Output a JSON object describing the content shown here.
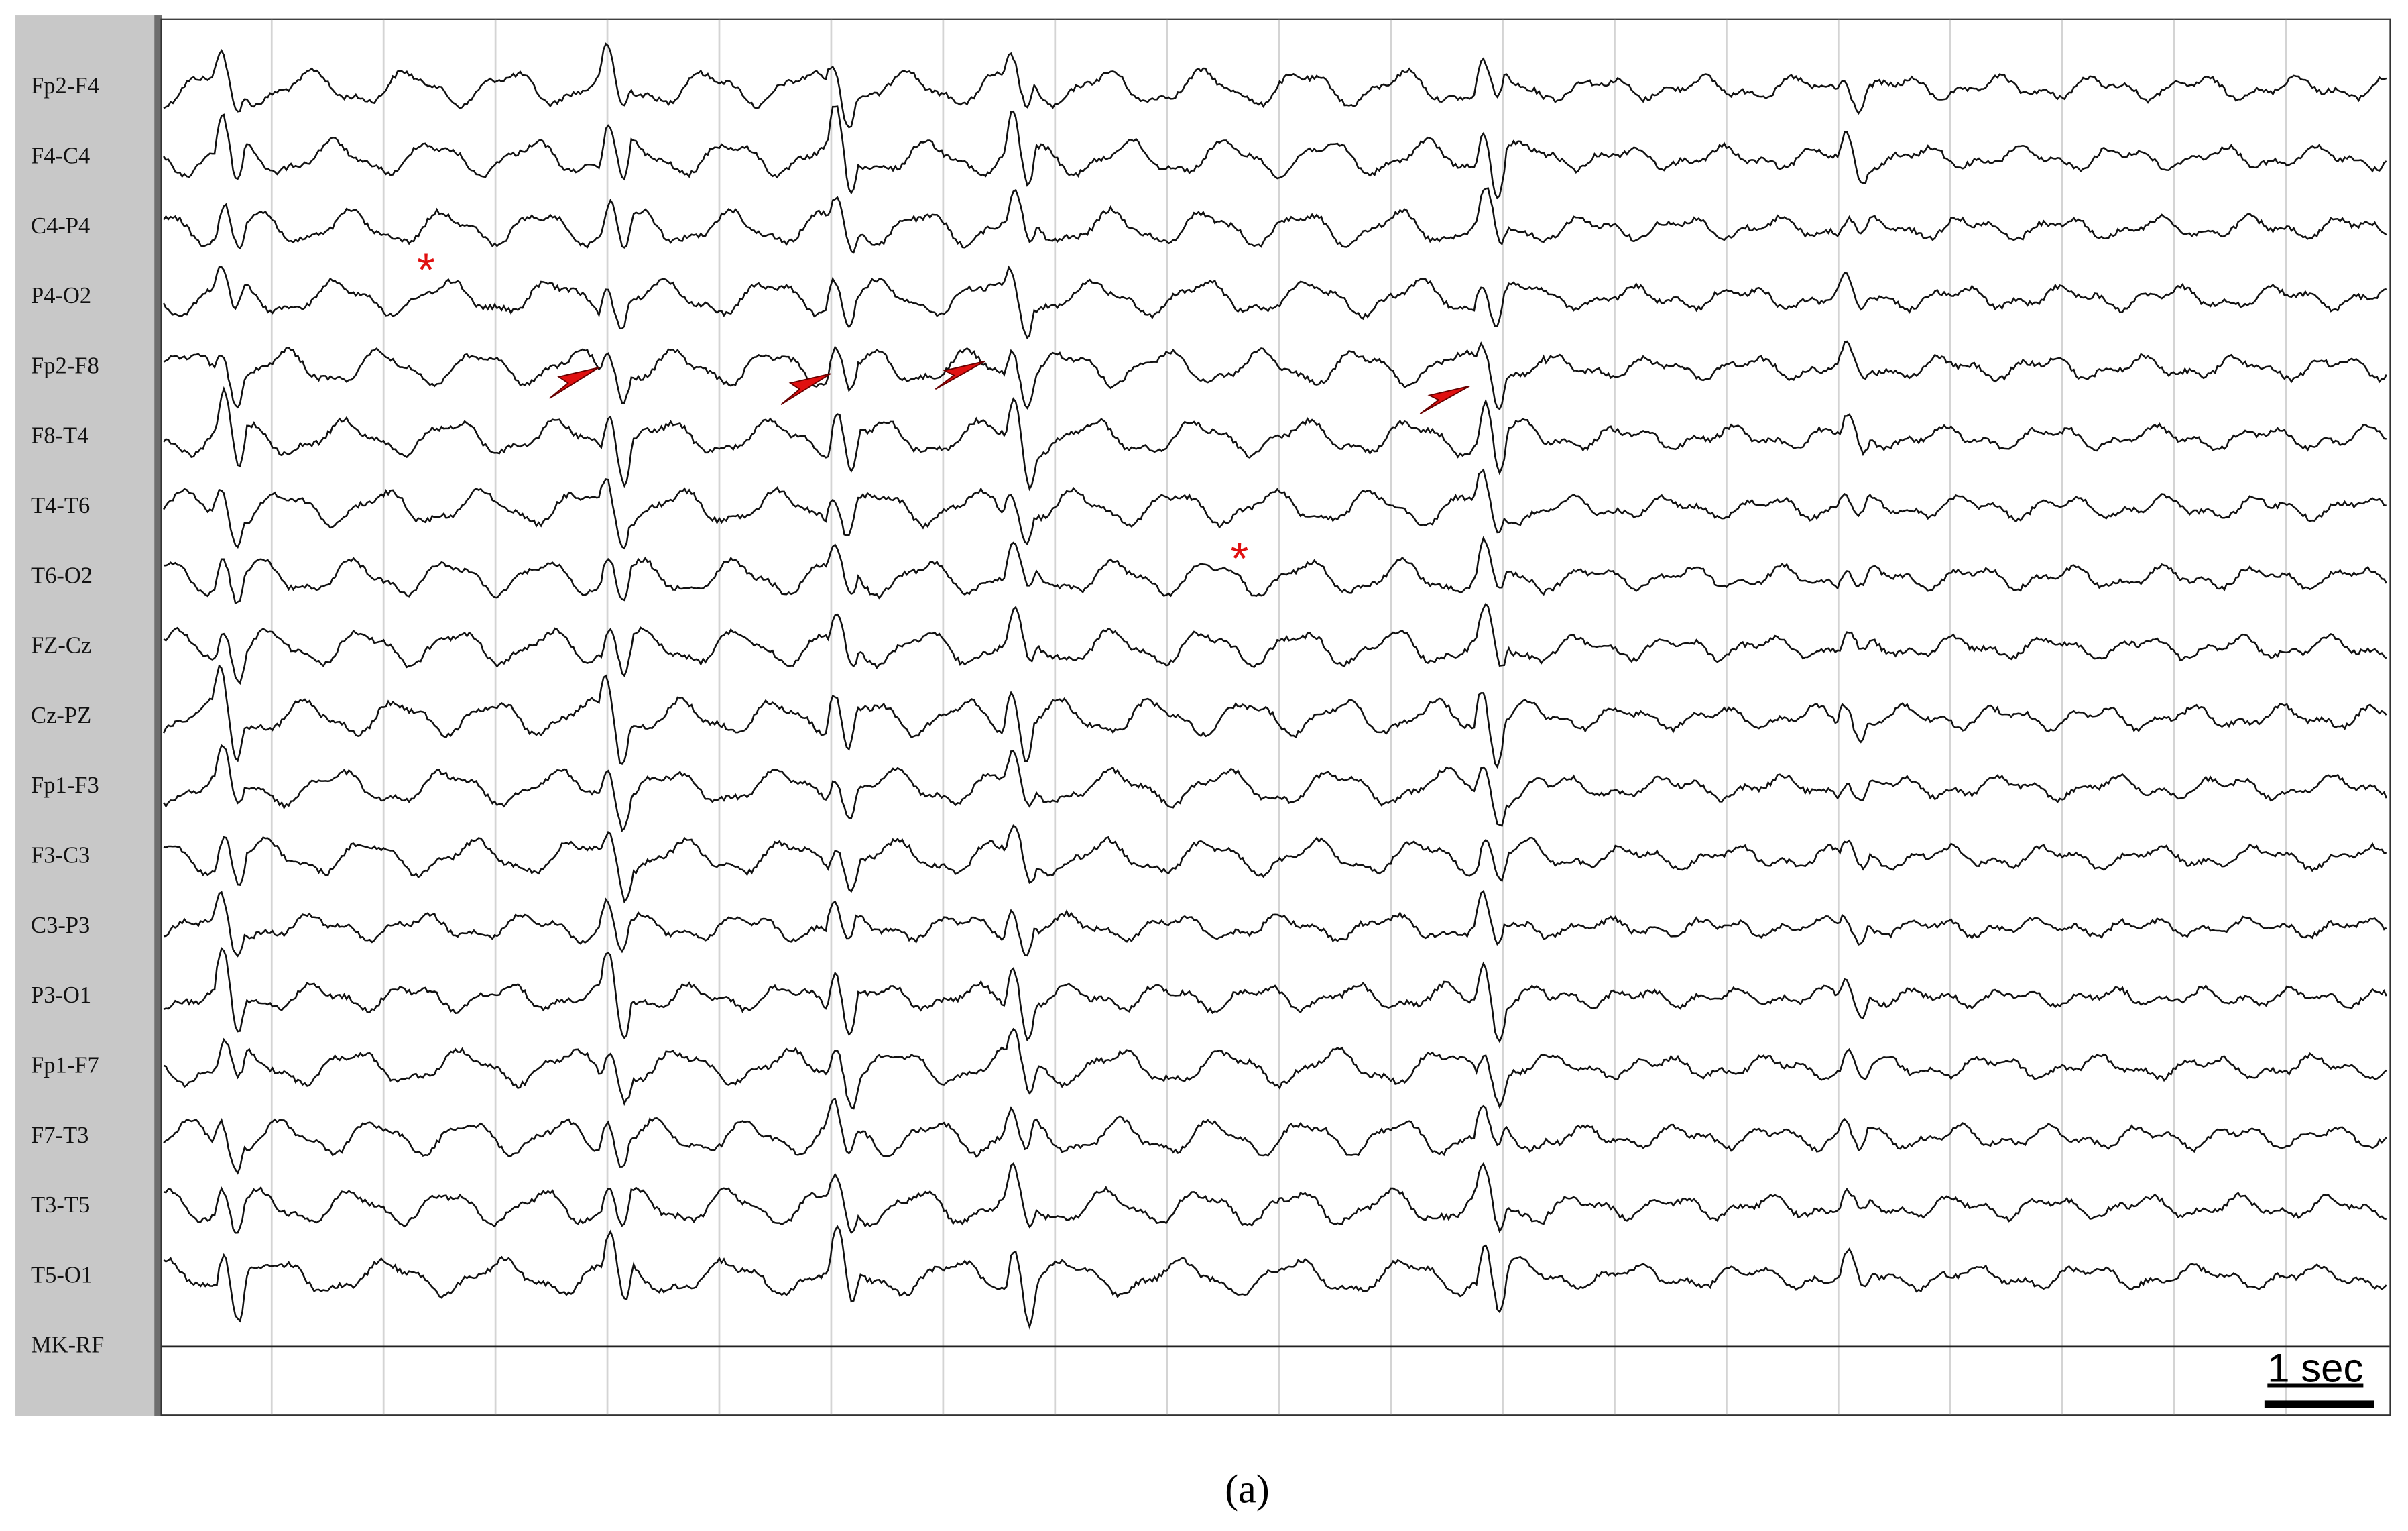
{
  "figure": {
    "channels": [
      "Fp2-F4",
      "F4-C4",
      "C4-P4",
      "P4-O2",
      "Fp2-F8",
      "F8-T4",
      "T4-T6",
      "T6-O2",
      "FZ-Cz",
      "Cz-PZ",
      "Fp1-F3",
      "F3-C3",
      "C3-P3",
      "P3-O1",
      "Fp1-F7",
      "F7-T3",
      "T3-T5",
      "T5-O1",
      "MK-RF"
    ],
    "scale_label": "1 sec",
    "asterisks": [
      "*",
      "*"
    ],
    "panel_label": "(a)"
  }
}
